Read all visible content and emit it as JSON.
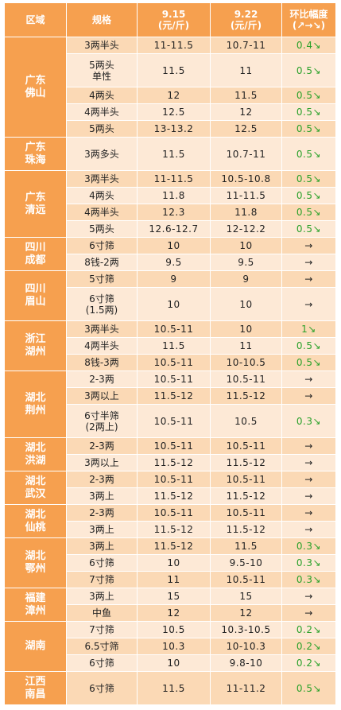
{
  "headers": {
    "region": "区域",
    "spec": "规格",
    "date1": "9.15",
    "date1_unit": "(元/斤)",
    "date2": "9.22",
    "date2_unit": "(元/斤)",
    "change": "环比幅度",
    "change_sub": "(↗→↘)"
  },
  "regions": [
    {
      "line1": "广东",
      "line2": "佛山",
      "rows": 5
    },
    {
      "line1": "广东",
      "line2": "珠海",
      "rows": 1
    },
    {
      "line1": "广东",
      "line2": "清远",
      "rows": 4
    },
    {
      "line1": "四川",
      "line2": "成都",
      "rows": 2
    },
    {
      "line1": "四川",
      "line2": "眉山",
      "rows": 2
    },
    {
      "line1": "浙江",
      "line2": "湖州",
      "rows": 3
    },
    {
      "line1": "湖北",
      "line2": "荆州",
      "rows": 3
    },
    {
      "line1": "湖北",
      "line2": "洪湖",
      "rows": 2
    },
    {
      "line1": "湖北",
      "line2": "武汉",
      "rows": 2
    },
    {
      "line1": "湖北",
      "line2": "仙桃",
      "rows": 2
    },
    {
      "line1": "湖北",
      "line2": "鄂州",
      "rows": 3
    },
    {
      "line1": "福建",
      "line2": "漳州",
      "rows": 2
    },
    {
      "line1": "湖南",
      "line2": "",
      "rows": 3
    },
    {
      "line1": "江西",
      "line2": "南昌",
      "rows": 1
    }
  ],
  "rows": [
    {
      "spec": "3两半头",
      "spec2": "",
      "p1": "11-11.5",
      "p2": "10.7-11",
      "chg": "0.4↘",
      "green": true,
      "h": 21
    },
    {
      "spec": "5两头",
      "spec2": "单性",
      "p1": "11.5",
      "p2": "11",
      "chg": "0.5↘",
      "green": true,
      "h": 42
    },
    {
      "spec": "4两头",
      "spec2": "",
      "p1": "12",
      "p2": "11.5",
      "chg": "0.5↘",
      "green": true,
      "h": 21
    },
    {
      "spec": "4两半头",
      "spec2": "",
      "p1": "12.5",
      "p2": "12",
      "chg": "0.5↘",
      "green": true,
      "h": 21
    },
    {
      "spec": "5两头",
      "spec2": "",
      "p1": "13-13.2",
      "p2": "12.5",
      "chg": "0.5↘",
      "green": true,
      "h": 21
    },
    {
      "spec": "3两多头",
      "spec2": "",
      "p1": "11.5",
      "p2": "10.7-11",
      "chg": "0.5↘",
      "green": true,
      "h": 42
    },
    {
      "spec": "3两半头",
      "spec2": "",
      "p1": "11-11.5",
      "p2": "10.5-10.8",
      "chg": "0.5↘",
      "green": true,
      "h": 21
    },
    {
      "spec": "4两头",
      "spec2": "",
      "p1": "11.8",
      "p2": "11-11.5",
      "chg": "0.5↘",
      "green": true,
      "h": 21
    },
    {
      "spec": "4两半头",
      "spec2": "",
      "p1": "12.3",
      "p2": "11.8",
      "chg": "0.5↘",
      "green": true,
      "h": 21
    },
    {
      "spec": "5两头",
      "spec2": "",
      "p1": "12.6-12.7",
      "p2": "12-12.2",
      "chg": "0.5↘",
      "green": true,
      "h": 21
    },
    {
      "spec": "6寸筛",
      "spec2": "",
      "p1": "10",
      "p2": "10",
      "chg": "→",
      "green": false,
      "h": 21
    },
    {
      "spec": "8钱-2两",
      "spec2": "",
      "p1": "9.5",
      "p2": "9.5",
      "chg": "→",
      "green": false,
      "h": 21
    },
    {
      "spec": "5寸筛",
      "spec2": "",
      "p1": "9",
      "p2": "9",
      "chg": "→",
      "green": false,
      "h": 21
    },
    {
      "spec": "6寸筛",
      "spec2": "(1.5两)",
      "p1": "10",
      "p2": "10",
      "chg": "→",
      "green": false,
      "h": 42
    },
    {
      "spec": "3两半头",
      "spec2": "",
      "p1": "10.5-11",
      "p2": "10",
      "chg": "1↘",
      "green": true,
      "h": 21
    },
    {
      "spec": "4两半头",
      "spec2": "",
      "p1": "11.5",
      "p2": "11",
      "chg": "0.5↘",
      "green": true,
      "h": 21
    },
    {
      "spec": "8钱-3两",
      "spec2": "",
      "p1": "10.5-11",
      "p2": "10-10.5",
      "chg": "0.5↘",
      "green": true,
      "h": 21
    },
    {
      "spec": "2-3两",
      "spec2": "",
      "p1": "10.5-11",
      "p2": "10.5-11",
      "chg": "→",
      "green": false,
      "h": 21
    },
    {
      "spec": "3两以上",
      "spec2": "",
      "p1": "11.5-12",
      "p2": "11.5-12",
      "chg": "→",
      "green": false,
      "h": 21
    },
    {
      "spec": "6寸半筛",
      "spec2": "(2两上)",
      "p1": "10.5-11",
      "p2": "10.5",
      "chg": "0.3↘",
      "green": true,
      "h": 42
    },
    {
      "spec": "2-3两",
      "spec2": "",
      "p1": "10.5-11",
      "p2": "10.5-11",
      "chg": "→",
      "green": false,
      "h": 21
    },
    {
      "spec": "3两以上",
      "spec2": "",
      "p1": "11.5-12",
      "p2": "11.5-12",
      "chg": "→",
      "green": false,
      "h": 21
    },
    {
      "spec": "2-3两",
      "spec2": "",
      "p1": "10.5-11",
      "p2": "10.5-11",
      "chg": "→",
      "green": false,
      "h": 21
    },
    {
      "spec": "3两上",
      "spec2": "",
      "p1": "11.5-12",
      "p2": "11.5-12",
      "chg": "→",
      "green": false,
      "h": 21
    },
    {
      "spec": "2-3两",
      "spec2": "",
      "p1": "10.5-11",
      "p2": "10.5-11",
      "chg": "→",
      "green": false,
      "h": 21
    },
    {
      "spec": "3两上",
      "spec2": "",
      "p1": "11.5-12",
      "p2": "11.5-12",
      "chg": "→",
      "green": false,
      "h": 21
    },
    {
      "spec": "3两上",
      "spec2": "",
      "p1": "11.5-12",
      "p2": "11.5",
      "chg": "0.3↘",
      "green": true,
      "h": 21
    },
    {
      "spec": "6寸筛",
      "spec2": "",
      "p1": "10",
      "p2": "9.5-10",
      "chg": "0.3↘",
      "green": true,
      "h": 21
    },
    {
      "spec": "7寸筛",
      "spec2": "",
      "p1": "11",
      "p2": "10.5-11",
      "chg": "0.3↘",
      "green": true,
      "h": 21
    },
    {
      "spec": "3两上",
      "spec2": "",
      "p1": "15",
      "p2": "15",
      "chg": "→",
      "green": false,
      "h": 21
    },
    {
      "spec": "中鱼",
      "spec2": "",
      "p1": "12",
      "p2": "12",
      "chg": "→",
      "green": false,
      "h": 21
    },
    {
      "spec": "7寸筛",
      "spec2": "",
      "p1": "10.5",
      "p2": "10.3-10.5",
      "chg": "0.2↘",
      "green": true,
      "h": 21
    },
    {
      "spec": "6.5寸筛",
      "spec2": "",
      "p1": "10.3",
      "p2": "10-10.3",
      "chg": "0.2↘",
      "green": true,
      "h": 21
    },
    {
      "spec": "6寸筛",
      "spec2": "",
      "p1": "10",
      "p2": "9.8-10",
      "chg": "0.2↘",
      "green": true,
      "h": 21
    },
    {
      "spec": "6寸筛",
      "spec2": "",
      "p1": "11.5",
      "p2": "11-11.2",
      "chg": "0.5↘",
      "green": true,
      "h": 42
    }
  ],
  "colors": {
    "header": "#f6a04f",
    "row_dark": "#fbd9b5",
    "row_light": "#fde9d6",
    "down_green": "#2aa12a"
  }
}
